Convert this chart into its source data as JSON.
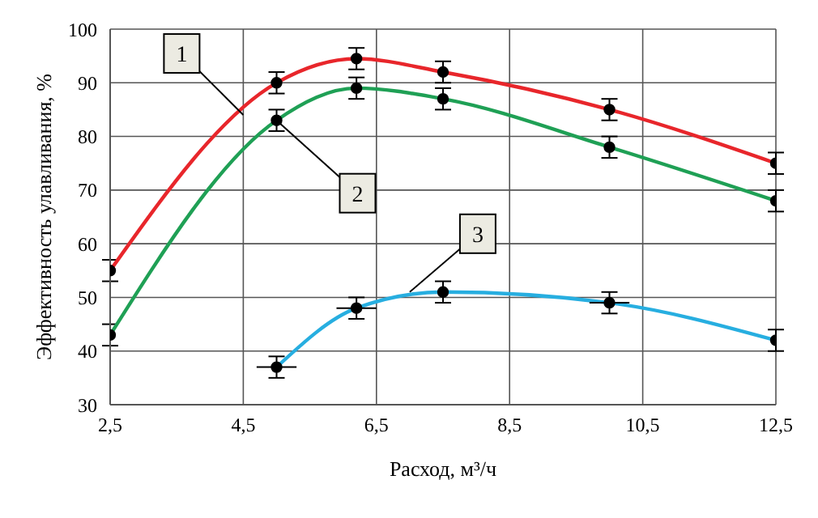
{
  "chart_data": {
    "type": "line",
    "xlabel": "Расход, м³/ч",
    "ylabel": "Эффективность улавливания, %",
    "xlim": [
      2.5,
      12.5
    ],
    "xticks": [
      {
        "value": 2.5,
        "label": "2,5"
      },
      {
        "value": 4.5,
        "label": "4,5"
      },
      {
        "value": 6.5,
        "label": "6,5"
      },
      {
        "value": 8.5,
        "label": "8,5"
      },
      {
        "value": 10.5,
        "label": "10,5"
      },
      {
        "value": 12.5,
        "label": "12,5"
      }
    ],
    "ylim": [
      30,
      100
    ],
    "yticks": [
      30,
      40,
      50,
      60,
      70,
      80,
      90,
      100
    ],
    "grid": true,
    "legend": false,
    "marker": "circle",
    "line_style": "solid",
    "series": [
      {
        "color": "#e8262b",
        "x": [
          2.5,
          5,
          6.2,
          7.5,
          10,
          12.5
        ],
        "values": [
          55,
          90,
          94.5,
          92,
          85,
          75
        ],
        "errors": [
          2,
          2,
          2,
          2,
          2,
          2
        ]
      },
      {
        "color": "#1fa055",
        "x": [
          2.5,
          5,
          6.2,
          7.5,
          10,
          12.5
        ],
        "values": [
          43,
          83,
          89,
          87,
          78,
          68
        ],
        "errors": [
          2,
          2,
          2,
          2,
          2,
          2
        ]
      },
      {
        "color": "#27aee0",
        "x": [
          5,
          6.2,
          7.5,
          10,
          12.5
        ],
        "values": [
          37,
          48,
          51,
          49,
          42
        ],
        "errors": [
          2,
          2,
          2,
          2,
          2
        ],
        "xerrors": [
          0.3,
          0.3,
          null,
          0.3,
          null
        ]
      }
    ],
    "annotations": [
      {
        "text": "1",
        "x": 4.5,
        "y": 84
      },
      {
        "text": "2",
        "x": 5,
        "y": 83
      },
      {
        "text": "3",
        "x": 7,
        "y": 51
      }
    ]
  }
}
